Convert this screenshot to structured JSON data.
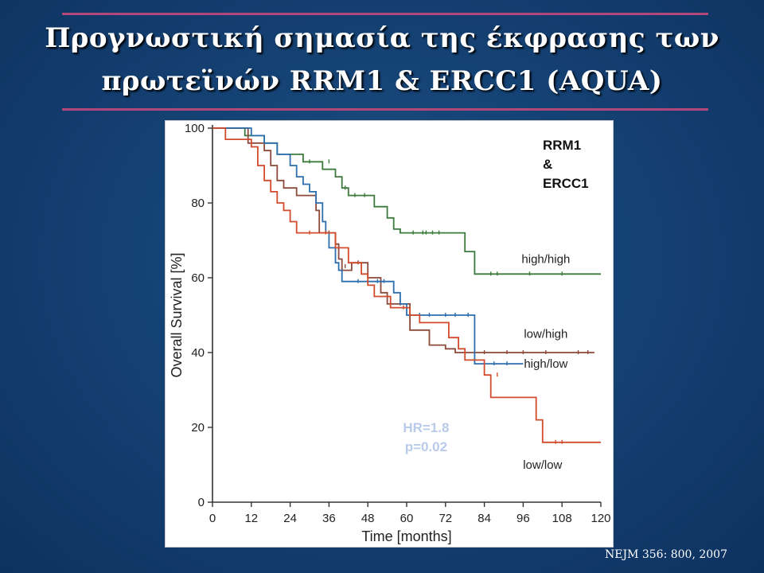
{
  "slide": {
    "title_line1": "Προγνωστική σημασία της έκφρασης των",
    "title_line2": "πρωτεϊνών RRM1 & ERCC1 (AQUA)",
    "citation": "NEJM 356: 800, 2007"
  },
  "chart_data": {
    "type": "line",
    "title": "RRM1 & ERCC1",
    "title_lines": [
      "RRM1",
      "&",
      "ERCC1"
    ],
    "xlabel": "Time [months]",
    "ylabel": "Overall Survival [%]",
    "xlim": [
      0,
      120
    ],
    "ylim": [
      0,
      100
    ],
    "x_ticks": [
      0,
      12,
      24,
      36,
      48,
      60,
      72,
      84,
      96,
      108,
      120
    ],
    "y_ticks": [
      0,
      20,
      40,
      60,
      80,
      100
    ],
    "grid": false,
    "step": true,
    "annotation": [
      "HR=1.8",
      "p=0.02"
    ],
    "annotation_color": "#b9cbe8",
    "series": [
      {
        "name": "high/high",
        "color": "#3d7a3d",
        "points": [
          [
            0,
            100
          ],
          [
            10,
            100
          ],
          [
            10,
            98
          ],
          [
            16,
            98
          ],
          [
            16,
            96
          ],
          [
            20,
            96
          ],
          [
            20,
            93
          ],
          [
            28,
            93
          ],
          [
            28,
            91
          ],
          [
            34,
            91
          ],
          [
            34,
            89
          ],
          [
            38,
            89
          ],
          [
            38,
            87
          ],
          [
            40,
            87
          ],
          [
            40,
            84
          ],
          [
            42,
            84
          ],
          [
            42,
            82
          ],
          [
            50,
            82
          ],
          [
            50,
            79
          ],
          [
            54,
            79
          ],
          [
            54,
            76
          ],
          [
            56,
            76
          ],
          [
            56,
            73
          ],
          [
            58,
            73
          ],
          [
            58,
            72
          ],
          [
            78,
            72
          ],
          [
            78,
            67
          ],
          [
            81,
            67
          ],
          [
            81,
            61
          ],
          [
            120,
            61
          ]
        ],
        "censors": [
          [
            30,
            91
          ],
          [
            36,
            91
          ],
          [
            41,
            84
          ],
          [
            44,
            82
          ],
          [
            47,
            82
          ],
          [
            62,
            72
          ],
          [
            65,
            72
          ],
          [
            66,
            72
          ],
          [
            68,
            72
          ],
          [
            70,
            72
          ],
          [
            86,
            61
          ],
          [
            88,
            61
          ],
          [
            98,
            61
          ],
          [
            108,
            61
          ]
        ]
      },
      {
        "name": "low/high",
        "color": "#8b4a3a",
        "points": [
          [
            0,
            100
          ],
          [
            11,
            100
          ],
          [
            11,
            96
          ],
          [
            16,
            96
          ],
          [
            16,
            94
          ],
          [
            18,
            94
          ],
          [
            18,
            90
          ],
          [
            20,
            90
          ],
          [
            20,
            86
          ],
          [
            22,
            86
          ],
          [
            22,
            84
          ],
          [
            26,
            84
          ],
          [
            26,
            82
          ],
          [
            32,
            82
          ],
          [
            32,
            78
          ],
          [
            33,
            78
          ],
          [
            33,
            72
          ],
          [
            38,
            72
          ],
          [
            38,
            69
          ],
          [
            39,
            69
          ],
          [
            39,
            65
          ],
          [
            40,
            65
          ],
          [
            40,
            62
          ],
          [
            43,
            62
          ],
          [
            43,
            64
          ],
          [
            48,
            64
          ],
          [
            48,
            60
          ],
          [
            52,
            60
          ],
          [
            52,
            56
          ],
          [
            54,
            56
          ],
          [
            54,
            53
          ],
          [
            61,
            53
          ],
          [
            61,
            46
          ],
          [
            67,
            46
          ],
          [
            67,
            42
          ],
          [
            72,
            42
          ],
          [
            72,
            41
          ],
          [
            75,
            41
          ],
          [
            75,
            40
          ],
          [
            118,
            40
          ]
        ],
        "censors": [
          [
            36,
            72
          ],
          [
            41,
            63
          ],
          [
            45,
            64
          ],
          [
            58,
            53
          ],
          [
            84,
            40
          ],
          [
            91,
            40
          ],
          [
            96,
            40
          ],
          [
            103,
            40
          ],
          [
            113,
            40
          ],
          [
            116,
            40
          ]
        ]
      },
      {
        "name": "high/low",
        "color": "#2d6fae",
        "points": [
          [
            0,
            100
          ],
          [
            12,
            100
          ],
          [
            12,
            98
          ],
          [
            16,
            98
          ],
          [
            16,
            96
          ],
          [
            20,
            96
          ],
          [
            20,
            93
          ],
          [
            24,
            93
          ],
          [
            24,
            90
          ],
          [
            26,
            90
          ],
          [
            26,
            87
          ],
          [
            28,
            87
          ],
          [
            28,
            85
          ],
          [
            30,
            85
          ],
          [
            30,
            83
          ],
          [
            32,
            83
          ],
          [
            32,
            80
          ],
          [
            34,
            80
          ],
          [
            34,
            75
          ],
          [
            35,
            75
          ],
          [
            35,
            72
          ],
          [
            36,
            72
          ],
          [
            36,
            68
          ],
          [
            38,
            68
          ],
          [
            38,
            64
          ],
          [
            39,
            64
          ],
          [
            39,
            62
          ],
          [
            40,
            62
          ],
          [
            40,
            59
          ],
          [
            56,
            59
          ],
          [
            56,
            56
          ],
          [
            58,
            56
          ],
          [
            58,
            53
          ],
          [
            60,
            53
          ],
          [
            60,
            50
          ],
          [
            81,
            50
          ],
          [
            81,
            37
          ],
          [
            96,
            37
          ]
        ],
        "censors": [
          [
            45,
            59
          ],
          [
            48,
            59
          ],
          [
            51,
            59
          ],
          [
            53,
            59
          ],
          [
            64,
            50
          ],
          [
            67,
            50
          ],
          [
            72,
            50
          ],
          [
            75,
            50
          ],
          [
            79,
            50
          ],
          [
            84,
            37
          ],
          [
            87,
            37
          ],
          [
            91,
            37
          ]
        ]
      },
      {
        "name": "low/low",
        "color": "#d24b2c",
        "points": [
          [
            0,
            100
          ],
          [
            4,
            100
          ],
          [
            4,
            97
          ],
          [
            12,
            97
          ],
          [
            12,
            95
          ],
          [
            14,
            95
          ],
          [
            14,
            90
          ],
          [
            16,
            90
          ],
          [
            16,
            86
          ],
          [
            18,
            86
          ],
          [
            18,
            83
          ],
          [
            20,
            83
          ],
          [
            20,
            80
          ],
          [
            22,
            80
          ],
          [
            22,
            78
          ],
          [
            24,
            78
          ],
          [
            24,
            75
          ],
          [
            26,
            75
          ],
          [
            26,
            72
          ],
          [
            38,
            72
          ],
          [
            38,
            68
          ],
          [
            42,
            68
          ],
          [
            42,
            64
          ],
          [
            46,
            64
          ],
          [
            46,
            61
          ],
          [
            48,
            61
          ],
          [
            48,
            58
          ],
          [
            50,
            58
          ],
          [
            50,
            55
          ],
          [
            55,
            55
          ],
          [
            55,
            52
          ],
          [
            61,
            52
          ],
          [
            61,
            50
          ],
          [
            64,
            50
          ],
          [
            64,
            48
          ],
          [
            73,
            48
          ],
          [
            73,
            44
          ],
          [
            76,
            44
          ],
          [
            76,
            41
          ],
          [
            78,
            41
          ],
          [
            78,
            38
          ],
          [
            84,
            38
          ],
          [
            84,
            34
          ],
          [
            86,
            34
          ],
          [
            86,
            28
          ],
          [
            100,
            28
          ],
          [
            100,
            22
          ],
          [
            102,
            22
          ],
          [
            102,
            16
          ],
          [
            120,
            16
          ]
        ],
        "censors": [
          [
            30,
            72
          ],
          [
            35,
            72
          ],
          [
            59,
            52
          ],
          [
            88,
            34
          ],
          [
            106,
            16
          ],
          [
            108,
            16
          ]
        ]
      }
    ],
    "curve_labels": [
      {
        "text": "high/high",
        "x": 103,
        "y": 65
      },
      {
        "text": "low/high",
        "x": 103,
        "y": 45
      },
      {
        "text": "high/low",
        "x": 103,
        "y": 37
      },
      {
        "text": "low/low",
        "x": 102,
        "y": 10
      }
    ]
  }
}
